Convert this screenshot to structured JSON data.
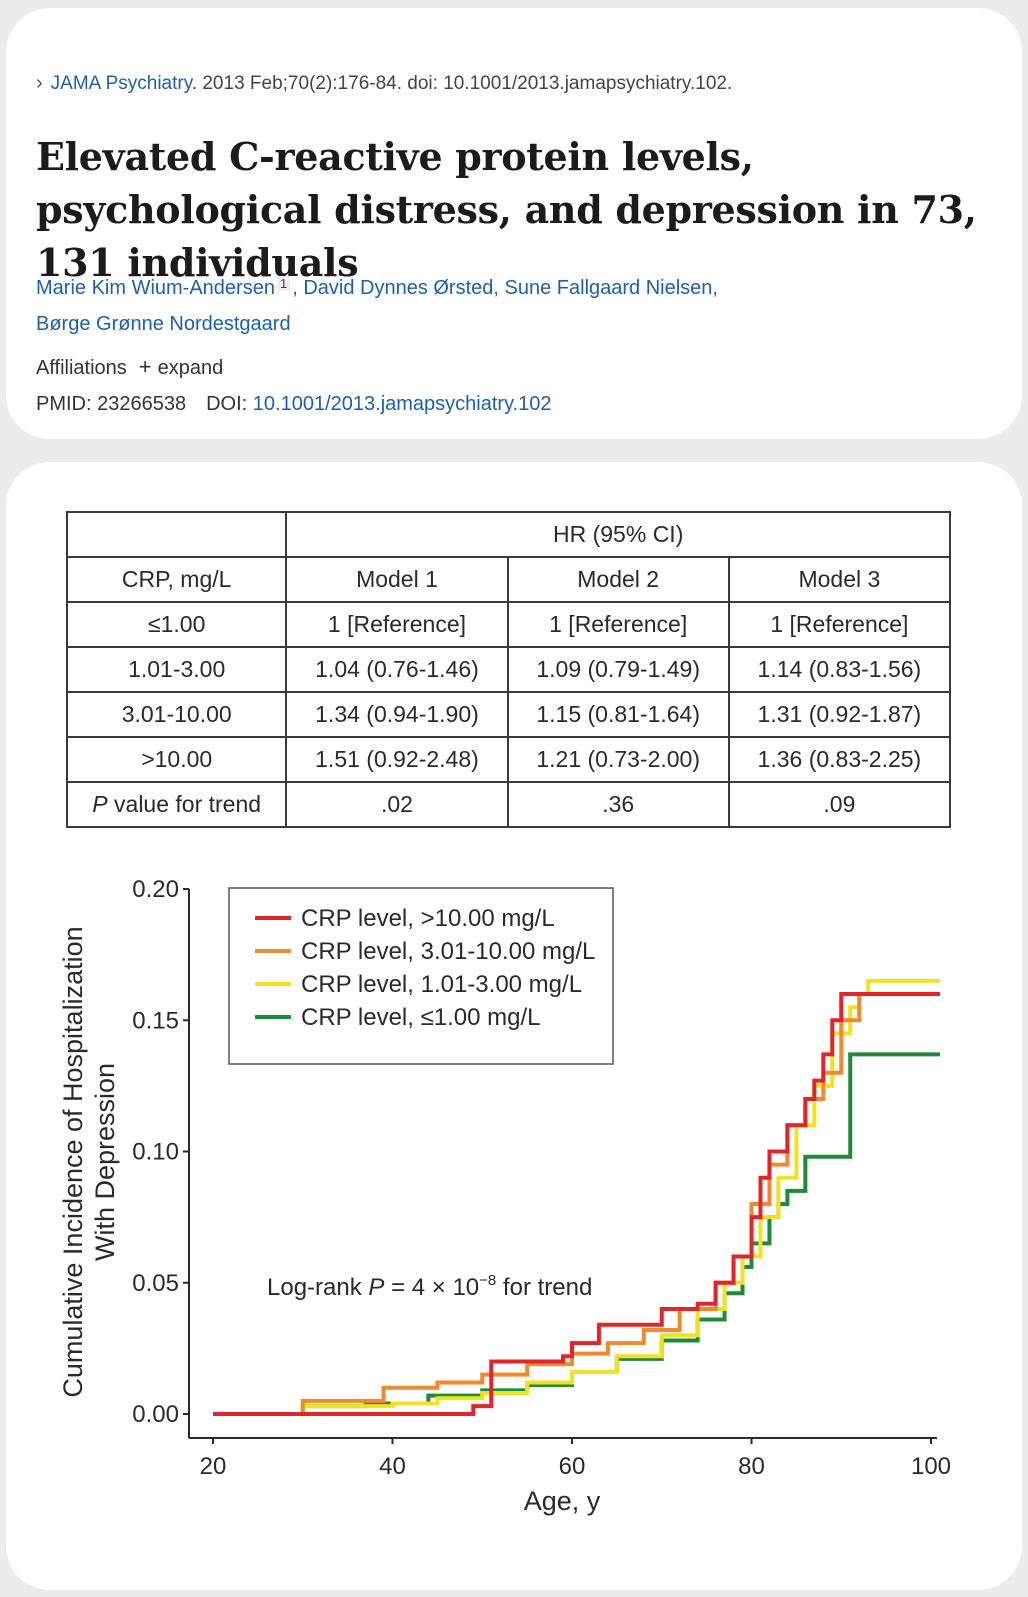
{
  "article": {
    "chevron": "›",
    "journal": "JAMA Psychiatry",
    "citation": ". 2013 Feb;70(2):176-84. doi: 10.1001/2013.jamapsychiatry.102.",
    "title": "Elevated C-reactive protein levels, psychological distress, and depression in 73, 131 individuals",
    "authors": [
      {
        "name": "Marie Kim Wium-Andersen",
        "sup": "1"
      },
      {
        "name": "David Dynnes Ørsted"
      },
      {
        "name": "Sune Fallgaard Nielsen"
      },
      {
        "name": "Børge Grønne Nordestgaard"
      }
    ],
    "affiliations_label": "Affiliations",
    "expand_label": "expand",
    "pmid": "PMID: 23266538",
    "doi_label": "DOI:",
    "doi_value": "10.1001/2013.jamapsychiatry.102"
  },
  "table": {
    "header_group": "HR (95% CI)",
    "columns": [
      "CRP, mg/L",
      "Model 1",
      "Model 2",
      "Model 3"
    ],
    "rows": [
      [
        "≤1.00",
        "1 [Reference]",
        "1 [Reference]",
        "1 [Reference]"
      ],
      [
        "1.01-3.00",
        "1.04 (0.76-1.46)",
        "1.09 (0.79-1.49)",
        "1.14 (0.83-1.56)"
      ],
      [
        "3.01-10.00",
        "1.34 (0.94-1.90)",
        "1.15 (0.81-1.64)",
        "1.31 (0.92-1.87)"
      ],
      [
        ">10.00",
        "1.51 (0.92-2.48)",
        "1.21 (0.73-2.00)",
        "1.36 (0.83-2.25)"
      ]
    ],
    "trend_row": {
      "label_p": "P",
      "label_rest": " value for trend",
      "values": [
        ".02",
        ".36",
        ".09"
      ]
    }
  },
  "chart_data": {
    "type": "line",
    "step": true,
    "xlabel": "Age, y",
    "ylabel_line1": "Cumulative Incidence of Hospitalization",
    "ylabel_line2": "With Depression",
    "xlim": [
      20,
      100
    ],
    "ylim": [
      0,
      0.2
    ],
    "xticks": [
      "20",
      "40",
      "60",
      "80",
      "100"
    ],
    "yticks": [
      "0.00",
      "0.05",
      "0.10",
      "0.15",
      "0.20"
    ],
    "grid": false,
    "legend_position": "top-left",
    "annotation": {
      "prefix": "Log-rank ",
      "p": "P",
      "mid": " = 4 × 10",
      "exp": "−8",
      "suffix": " for trend"
    },
    "series": [
      {
        "name": "CRP level, >10.00 mg/L",
        "color": "#e0262a",
        "points": [
          [
            20,
            0
          ],
          [
            49,
            0
          ],
          [
            49,
            0.003
          ],
          [
            51,
            0.003
          ],
          [
            51,
            0.02
          ],
          [
            56,
            0.02
          ],
          [
            56,
            0.02
          ],
          [
            59,
            0.022
          ],
          [
            60,
            0.027
          ],
          [
            63,
            0.027
          ],
          [
            63,
            0.034
          ],
          [
            68,
            0.034
          ],
          [
            70,
            0.04
          ],
          [
            74,
            0.042
          ],
          [
            76,
            0.05
          ],
          [
            78,
            0.06
          ],
          [
            80,
            0.075
          ],
          [
            81,
            0.09
          ],
          [
            82,
            0.1
          ],
          [
            84,
            0.11
          ],
          [
            86,
            0.12
          ],
          [
            87,
            0.127
          ],
          [
            88,
            0.137
          ],
          [
            89,
            0.15
          ],
          [
            90,
            0.16
          ],
          [
            101,
            0.16
          ]
        ]
      },
      {
        "name": "CRP level, 3.01-10.00 mg/L",
        "color": "#f08a2c",
        "points": [
          [
            20,
            0
          ],
          [
            30,
            0
          ],
          [
            30,
            0.005
          ],
          [
            39,
            0.005
          ],
          [
            39,
            0.01
          ],
          [
            45,
            0.012
          ],
          [
            50,
            0.015
          ],
          [
            55,
            0.019
          ],
          [
            60,
            0.023
          ],
          [
            64,
            0.027
          ],
          [
            68,
            0.032
          ],
          [
            72,
            0.04
          ],
          [
            76,
            0.05
          ],
          [
            78,
            0.06
          ],
          [
            80,
            0.08
          ],
          [
            82,
            0.095
          ],
          [
            84,
            0.11
          ],
          [
            86,
            0.12
          ],
          [
            88,
            0.13
          ],
          [
            90,
            0.15
          ],
          [
            92,
            0.16
          ],
          [
            101,
            0.16
          ]
        ]
      },
      {
        "name": "CRP level, 1.01-3.00 mg/L",
        "color": "#f2e221",
        "points": [
          [
            20,
            0
          ],
          [
            30,
            0
          ],
          [
            30,
            0.003
          ],
          [
            40,
            0.004
          ],
          [
            45,
            0.006
          ],
          [
            50,
            0.008
          ],
          [
            55,
            0.012
          ],
          [
            60,
            0.016
          ],
          [
            65,
            0.022
          ],
          [
            70,
            0.03
          ],
          [
            74,
            0.04
          ],
          [
            77,
            0.05
          ],
          [
            79,
            0.06
          ],
          [
            81,
            0.075
          ],
          [
            83,
            0.09
          ],
          [
            85,
            0.11
          ],
          [
            87,
            0.125
          ],
          [
            89,
            0.145
          ],
          [
            91,
            0.155
          ],
          [
            92,
            0.16
          ],
          [
            93,
            0.165
          ],
          [
            101,
            0.165
          ]
        ]
      },
      {
        "name": "CRP level, ≤1.00 mg/L",
        "color": "#1e8a3a",
        "points": [
          [
            20,
            0
          ],
          [
            30,
            0
          ],
          [
            30,
            0.003
          ],
          [
            37,
            0.004
          ],
          [
            44,
            0.007
          ],
          [
            50,
            0.009
          ],
          [
            55,
            0.011
          ],
          [
            60,
            0.016
          ],
          [
            65,
            0.021
          ],
          [
            70,
            0.028
          ],
          [
            74,
            0.036
          ],
          [
            77,
            0.046
          ],
          [
            79,
            0.056
          ],
          [
            80,
            0.065
          ],
          [
            82,
            0.075
          ],
          [
            83,
            0.08
          ],
          [
            84,
            0.085
          ],
          [
            86,
            0.085
          ],
          [
            86,
            0.098
          ],
          [
            91,
            0.098
          ],
          [
            91,
            0.137
          ],
          [
            101,
            0.137
          ]
        ]
      }
    ]
  }
}
